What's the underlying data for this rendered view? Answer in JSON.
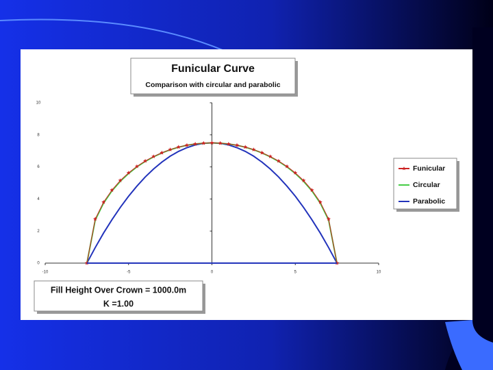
{
  "chart_data": {
    "type": "line",
    "title": "Funicular Curve",
    "subtitle": "Comparison with circular and parabolic",
    "annotations": [
      "Fill Height Over Crown = 1000.0m",
      "K =1.00"
    ],
    "x": [
      -7.5,
      -7,
      -6.5,
      -6,
      -5.5,
      -5,
      -4.5,
      -4,
      -3.5,
      -3,
      -2.5,
      -2,
      -1.5,
      -1,
      -0.5,
      0,
      0.5,
      1,
      1.5,
      2,
      2.5,
      3,
      3.5,
      4,
      4.5,
      5,
      5.5,
      6,
      6.5,
      7,
      7.5
    ],
    "series": [
      {
        "name": "Funicular",
        "color": "#cc2222",
        "marker": "star",
        "values": [
          0,
          2.75,
          3.8,
          4.55,
          5.15,
          5.63,
          6.03,
          6.37,
          6.65,
          6.88,
          7.08,
          7.24,
          7.35,
          7.43,
          7.48,
          7.5,
          7.48,
          7.43,
          7.35,
          7.24,
          7.08,
          6.88,
          6.65,
          6.37,
          6.03,
          5.63,
          5.15,
          4.55,
          3.8,
          2.75,
          0
        ]
      },
      {
        "name": "Circular",
        "color": "#44cc44",
        "values": [
          0,
          2.69,
          3.74,
          4.5,
          5.1,
          5.59,
          6,
          6.34,
          6.63,
          6.87,
          7.07,
          7.23,
          7.35,
          7.43,
          7.48,
          7.5,
          7.48,
          7.43,
          7.35,
          7.23,
          7.07,
          6.87,
          6.63,
          6.34,
          6,
          5.59,
          5.1,
          4.5,
          3.74,
          2.69,
          0
        ]
      },
      {
        "name": "Parabolic",
        "color": "#2233bb",
        "values": [
          0,
          0.97,
          1.87,
          2.7,
          3.47,
          4.17,
          4.8,
          5.37,
          5.87,
          6.3,
          6.67,
          6.97,
          7.2,
          7.37,
          7.47,
          7.5,
          7.47,
          7.37,
          7.2,
          6.97,
          6.67,
          6.3,
          5.87,
          5.37,
          4.8,
          4.17,
          3.47,
          2.7,
          1.87,
          0.97,
          0
        ]
      }
    ],
    "xlim": [
      -10,
      10
    ],
    "ylim": [
      0,
      10
    ],
    "xticks": [
      -10,
      -5,
      0,
      5,
      10
    ],
    "yticks": [
      0,
      2,
      4,
      6,
      8,
      10
    ],
    "legend": "right"
  }
}
